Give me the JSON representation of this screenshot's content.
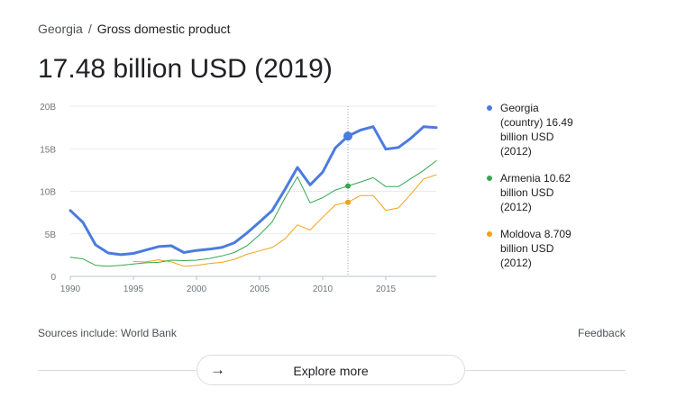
{
  "breadcrumb": {
    "parent": "Georgia",
    "separator": "/",
    "current": "Gross domestic product"
  },
  "headline": "17.48 billion USD (2019)",
  "legend": [
    {
      "label": "Georgia (country) 16.49 billion USD (2012)",
      "color": "#4b7be0"
    },
    {
      "label": "Armenia 10.62 billion USD (2012)",
      "color": "#34a853"
    },
    {
      "label": "Moldova 8.709 billion USD (2012)",
      "color": "#f4a01b"
    }
  ],
  "footer": {
    "sources": "Sources include: World Bank",
    "feedback": "Feedback"
  },
  "explore": {
    "label": "Explore more",
    "icon": "arrow-right-icon"
  },
  "chart_data": {
    "type": "line",
    "ylim": [
      0,
      20
    ],
    "xlim": [
      1990,
      2019
    ],
    "y_ticks": [
      "0",
      "5B",
      "10B",
      "15B",
      "20B"
    ],
    "x_ticks": [
      "1990",
      "1995",
      "2000",
      "2005",
      "2010",
      "2015"
    ],
    "grid": true,
    "legend_position": "right",
    "highlight_x": 2012,
    "series": [
      {
        "name": "Georgia (country)",
        "color": "#4b7be0",
        "x": [
          1990,
          1991,
          1992,
          1993,
          1994,
          1995,
          1996,
          1997,
          1998,
          1999,
          2000,
          2001,
          2002,
          2003,
          2004,
          2005,
          2006,
          2007,
          2008,
          2009,
          2010,
          2011,
          2012,
          2013,
          2014,
          2015,
          2016,
          2017,
          2018,
          2019
        ],
        "values": [
          7.75,
          6.35,
          3.7,
          2.75,
          2.55,
          2.7,
          3.1,
          3.5,
          3.6,
          2.8,
          3.05,
          3.2,
          3.4,
          3.95,
          5.1,
          6.4,
          7.75,
          10.2,
          12.8,
          10.75,
          12.25,
          15.1,
          16.49,
          17.2,
          17.6,
          14.95,
          15.15,
          16.25,
          17.6,
          17.48
        ]
      },
      {
        "name": "Armenia",
        "color": "#34a853",
        "x": [
          1990,
          1991,
          1992,
          1993,
          1994,
          1995,
          1996,
          1997,
          1998,
          1999,
          2000,
          2001,
          2002,
          2003,
          2004,
          2005,
          2006,
          2007,
          2008,
          2009,
          2010,
          2011,
          2012,
          2013,
          2014,
          2015,
          2016,
          2017,
          2018,
          2019
        ],
        "values": [
          2.25,
          2.05,
          1.3,
          1.2,
          1.3,
          1.45,
          1.6,
          1.65,
          1.9,
          1.85,
          1.9,
          2.1,
          2.4,
          2.8,
          3.6,
          4.9,
          6.4,
          9.2,
          11.7,
          8.65,
          9.25,
          10.15,
          10.62,
          11.1,
          11.6,
          10.55,
          10.55,
          11.5,
          12.45,
          13.6
        ]
      },
      {
        "name": "Moldova",
        "color": "#f4a01b",
        "x": [
          1995,
          1996,
          1997,
          1998,
          1999,
          2000,
          2001,
          2002,
          2003,
          2004,
          2005,
          2006,
          2007,
          2008,
          2009,
          2010,
          2011,
          2012,
          2013,
          2014,
          2015,
          2016,
          2017,
          2018,
          2019
        ],
        "values": [
          1.75,
          1.7,
          1.95,
          1.7,
          1.2,
          1.3,
          1.5,
          1.65,
          2.0,
          2.6,
          3.0,
          3.4,
          4.4,
          6.05,
          5.45,
          6.95,
          8.4,
          8.709,
          9.5,
          9.5,
          7.75,
          8.05,
          9.7,
          11.45,
          11.95
        ]
      }
    ]
  }
}
